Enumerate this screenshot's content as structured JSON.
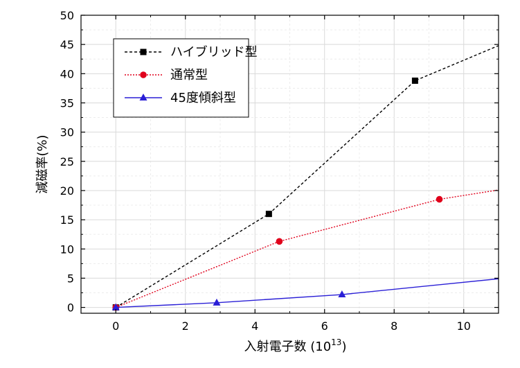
{
  "chart_data": {
    "type": "line",
    "title": "",
    "xlabel": "入射電子数 (10",
    "xlabel_sup": "13",
    "xlabel_close": ")",
    "ylabel": "減磁率(%)",
    "xlim": [
      -1,
      11
    ],
    "ylim": [
      -1,
      50
    ],
    "xticks": [
      0,
      2,
      4,
      6,
      8,
      10
    ],
    "yticks": [
      0,
      5,
      10,
      15,
      20,
      25,
      30,
      35,
      40,
      45,
      50
    ],
    "grid": true,
    "legend_position": "top-left",
    "series": [
      {
        "name": "ハイブリッド型",
        "color": "#000000",
        "marker": "square",
        "line_style": "dashed",
        "points": [
          [
            0,
            0
          ],
          [
            4.4,
            16
          ],
          [
            8.6,
            38.8
          ]
        ],
        "extend_to": [
          11,
          44.8
        ]
      },
      {
        "name": "通常型",
        "color": "#e0001b",
        "marker": "circle",
        "line_style": "dotted",
        "points": [
          [
            0,
            0
          ],
          [
            4.7,
            11.3
          ],
          [
            9.3,
            18.5
          ]
        ],
        "extend_to": [
          11,
          20.1
        ]
      },
      {
        "name": "45度傾斜型",
        "color": "#2a1fd6",
        "marker": "triangle",
        "line_style": "solid",
        "points": [
          [
            0,
            0
          ],
          [
            2.9,
            0.8
          ],
          [
            6.5,
            2.2
          ]
        ],
        "extend_to": [
          11,
          4.9
        ]
      }
    ]
  }
}
